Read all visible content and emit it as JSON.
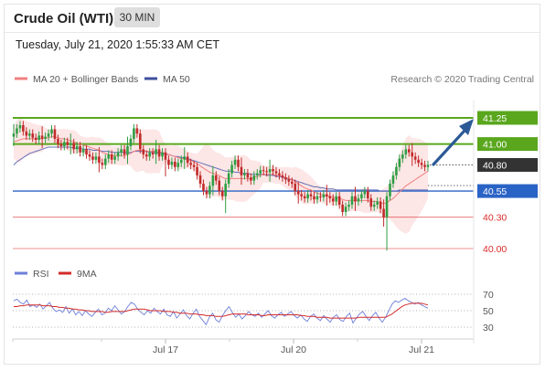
{
  "header": {
    "title": "Crude Oil (WTI)",
    "timeframe_label": "30 MIN"
  },
  "timestamp": "Tuesday, July 21, 2020 1:55:33 AM CET",
  "legend": {
    "ma20_label": "MA 20 + Bollinger Bands",
    "ma50_label": "MA 50",
    "rsi_label": "RSI",
    "rsi_ma_label": "9MA",
    "copyright": "Research © 2020 Trading Central"
  },
  "colors": {
    "green_level": "#5aa71e",
    "blue_level": "#2a63c6",
    "red_level": "#d92b2b",
    "current_price": "#333333",
    "bollinger_fill": "#fde3e3",
    "ma20": "#f08080",
    "ma50": "#6672b8",
    "bull_candle": "#2f9e44",
    "bear_candle": "#c12b2b",
    "rsi_line": "#6d7fd9",
    "rsi_ma_line": "#d42a2a",
    "arrow": "#2c5a96"
  },
  "chart_data": [
    {
      "type": "candlestick",
      "x_ticks": [
        "Jul 17",
        "Jul 20",
        "Jul 21"
      ],
      "price_labels": [
        {
          "label": "41.25",
          "value": 41.25,
          "kind": "resistance"
        },
        {
          "label": "41.00",
          "value": 41.0,
          "kind": "resistance"
        },
        {
          "label": "40.80",
          "value": 40.8,
          "kind": "current"
        },
        {
          "label": "40.55",
          "value": 40.55,
          "kind": "pivot"
        },
        {
          "label": "40.30",
          "value": 40.3,
          "kind": "support"
        },
        {
          "label": "40.00",
          "value": 40.0,
          "kind": "support"
        }
      ],
      "ylim": [
        39.95,
        41.45
      ],
      "close_series": [
        41.1,
        41.15,
        41.18,
        41.12,
        41.08,
        41.1,
        41.06,
        41.04,
        41.08,
        41.05,
        41.07,
        41.1,
        41.14,
        41.05,
        41.0,
        40.98,
        41.02,
        40.99,
        41.01,
        40.95,
        40.98,
        40.92,
        40.95,
        40.9,
        40.88,
        40.85,
        40.88,
        40.82,
        40.8,
        40.86,
        40.9,
        40.85,
        40.88,
        40.92,
        40.95,
        40.9,
        40.98,
        41.05,
        41.15,
        41.1,
        40.95,
        40.9,
        40.88,
        40.92,
        40.9,
        40.95,
        40.88,
        40.92,
        40.85,
        40.8,
        40.83,
        40.78,
        40.82,
        40.85,
        40.88,
        40.82,
        40.8,
        40.78,
        40.7,
        40.62,
        40.55,
        40.52,
        40.6,
        40.7,
        40.65,
        40.55,
        40.5,
        40.62,
        40.72,
        40.8,
        40.85,
        40.78,
        40.7,
        40.72,
        40.68,
        40.65,
        40.7,
        40.72,
        40.75,
        40.74,
        40.73,
        40.76,
        40.74,
        40.72,
        40.7,
        40.68,
        40.66,
        40.64,
        40.62,
        40.55,
        40.52,
        40.5,
        40.48,
        40.52,
        40.5,
        40.47,
        40.5,
        40.49,
        40.52,
        40.5,
        40.48,
        40.45,
        40.5,
        40.42,
        40.35,
        40.4,
        40.42,
        40.5,
        40.45,
        40.48,
        40.52,
        40.55,
        40.48,
        40.4,
        40.42,
        40.45,
        40.38,
        40.3,
        40.5,
        40.62,
        40.7,
        40.78,
        40.86,
        40.9,
        40.95,
        40.92,
        40.88,
        40.85,
        40.82,
        40.8,
        40.78,
        40.8
      ],
      "ma20_series": [
        41.02,
        41.03,
        41.04,
        41.05,
        41.05,
        41.05,
        41.05,
        41.05,
        41.05,
        41.05,
        41.06,
        41.06,
        41.07,
        41.07,
        41.06,
        41.05,
        41.05,
        41.04,
        41.03,
        41.02,
        41.01,
        41.0,
        40.99,
        40.98,
        40.97,
        40.96,
        40.95,
        40.94,
        40.92,
        40.91,
        40.9,
        40.89,
        40.89,
        40.89,
        40.89,
        40.89,
        40.9,
        40.91,
        40.93,
        40.94,
        40.94,
        40.94,
        40.93,
        40.93,
        40.93,
        40.93,
        40.92,
        40.92,
        40.91,
        40.9,
        40.89,
        40.88,
        40.87,
        40.86,
        40.86,
        40.85,
        40.84,
        40.83,
        40.81,
        40.79,
        40.77,
        40.75,
        40.73,
        40.72,
        40.71,
        40.7,
        40.68,
        40.67,
        40.67,
        40.67,
        40.67,
        40.67,
        40.67,
        40.67,
        40.67,
        40.67,
        40.68,
        40.69,
        40.7,
        40.71,
        40.71,
        40.71,
        40.71,
        40.7,
        40.7,
        40.69,
        40.68,
        40.67,
        40.66,
        40.64,
        40.62,
        40.6,
        40.58,
        40.57,
        40.56,
        40.54,
        40.53,
        40.52,
        40.51,
        40.5,
        40.5,
        40.49,
        40.49,
        40.48,
        40.47,
        40.46,
        40.46,
        40.46,
        40.46,
        40.46,
        40.46,
        40.46,
        40.46,
        40.45,
        40.45,
        40.45,
        40.44,
        40.43,
        40.44,
        40.46,
        40.48,
        40.51,
        40.54,
        40.57,
        40.6,
        40.62,
        40.64,
        40.66,
        40.68,
        40.7,
        40.72,
        40.74
      ],
      "ma50_series": [
        40.8,
        40.83,
        40.85,
        40.87,
        40.89,
        40.91,
        40.92,
        40.93,
        40.94,
        40.95,
        40.96,
        40.97,
        40.97,
        40.97,
        40.97,
        40.97,
        40.97,
        40.97,
        40.97,
        40.96,
        40.96,
        40.96,
        40.95,
        40.95,
        40.95,
        40.94,
        40.94,
        40.94,
        40.93,
        40.93,
        40.93,
        40.92,
        40.92,
        40.92,
        40.92,
        40.92,
        40.92,
        40.92,
        40.93,
        40.93,
        40.93,
        40.93,
        40.93,
        40.92,
        40.92,
        40.92,
        40.91,
        40.91,
        40.9,
        40.9,
        40.89,
        40.88,
        40.88,
        40.87,
        40.87,
        40.86,
        40.85,
        40.84,
        40.83,
        40.82,
        40.81,
        40.8,
        40.79,
        40.78,
        40.77,
        40.76,
        40.75,
        40.74,
        40.74,
        40.74,
        40.73,
        40.73,
        40.72,
        40.72,
        40.72,
        40.71,
        40.71,
        40.71,
        40.71,
        40.71,
        40.7,
        40.7,
        40.7,
        40.69,
        40.69,
        40.68,
        40.67,
        40.66,
        40.66,
        40.65,
        40.64,
        40.63,
        40.62,
        40.61,
        40.6,
        40.59,
        40.59,
        40.58,
        40.58,
        40.57,
        40.57,
        40.57,
        40.56,
        40.56,
        40.56,
        40.56,
        40.56,
        40.56,
        40.56,
        40.56,
        40.56,
        40.56,
        40.56,
        40.56,
        40.56,
        40.56,
        40.55,
        40.55,
        40.55,
        40.55,
        40.55,
        40.55,
        40.56,
        40.56,
        40.56,
        40.56,
        40.56,
        40.56,
        40.56,
        40.56,
        40.56,
        40.56
      ]
    },
    {
      "type": "line",
      "name": "RSI",
      "yticks": [
        "70",
        "50",
        "30"
      ],
      "ylim": [
        20,
        80
      ],
      "rsi_series": [
        62,
        64,
        60,
        58,
        63,
        55,
        57,
        54,
        58,
        52,
        56,
        60,
        53,
        49,
        51,
        48,
        55,
        47,
        52,
        45,
        49,
        44,
        50,
        46,
        43,
        48,
        52,
        45,
        47,
        53,
        50,
        56,
        51,
        46,
        49,
        55,
        60,
        58,
        52,
        48,
        45,
        50,
        47,
        53,
        49,
        46,
        52,
        45,
        43,
        49,
        41,
        46,
        51,
        44,
        40,
        47,
        52,
        43,
        38,
        33,
        42,
        47,
        39,
        36,
        44,
        50,
        55,
        48,
        42,
        46,
        40,
        44,
        49,
        45,
        43,
        47,
        42,
        46,
        50,
        44,
        41,
        45,
        48,
        43,
        46,
        49,
        44,
        41,
        45,
        40,
        37,
        43,
        46,
        41,
        38,
        44,
        40,
        36,
        42,
        45,
        39,
        37,
        43,
        47,
        35,
        41,
        46,
        49,
        43,
        38,
        44,
        48,
        41,
        36,
        42,
        50,
        58,
        62,
        60,
        63,
        65,
        62,
        60,
        58,
        60,
        57,
        55,
        53
      ],
      "rsi_ma_series": [
        55,
        55,
        56,
        56,
        57,
        57,
        57,
        57,
        57,
        56,
        56,
        56,
        55,
        55,
        54,
        54,
        53,
        53,
        52,
        52,
        51,
        51,
        50,
        50,
        49,
        49,
        49,
        49,
        48,
        48,
        49,
        49,
        49,
        49,
        49,
        50,
        51,
        52,
        52,
        52,
        52,
        51,
        50,
        50,
        50,
        50,
        49,
        49,
        49,
        48,
        48,
        47,
        47,
        47,
        46,
        46,
        46,
        45,
        45,
        44,
        44,
        44,
        43,
        43,
        43,
        44,
        45,
        46,
        46,
        46,
        46,
        46,
        45,
        45,
        45,
        45,
        44,
        44,
        45,
        45,
        45,
        45,
        45,
        45,
        45,
        45,
        45,
        45,
        44,
        44,
        43,
        43,
        43,
        42,
        42,
        42,
        42,
        41,
        41,
        41,
        41,
        41,
        41,
        41,
        41,
        41,
        42,
        42,
        42,
        42,
        42,
        42,
        42,
        42,
        42,
        44,
        46,
        49,
        52,
        55,
        57,
        58,
        59,
        59,
        59,
        59,
        58,
        57
      ]
    }
  ]
}
